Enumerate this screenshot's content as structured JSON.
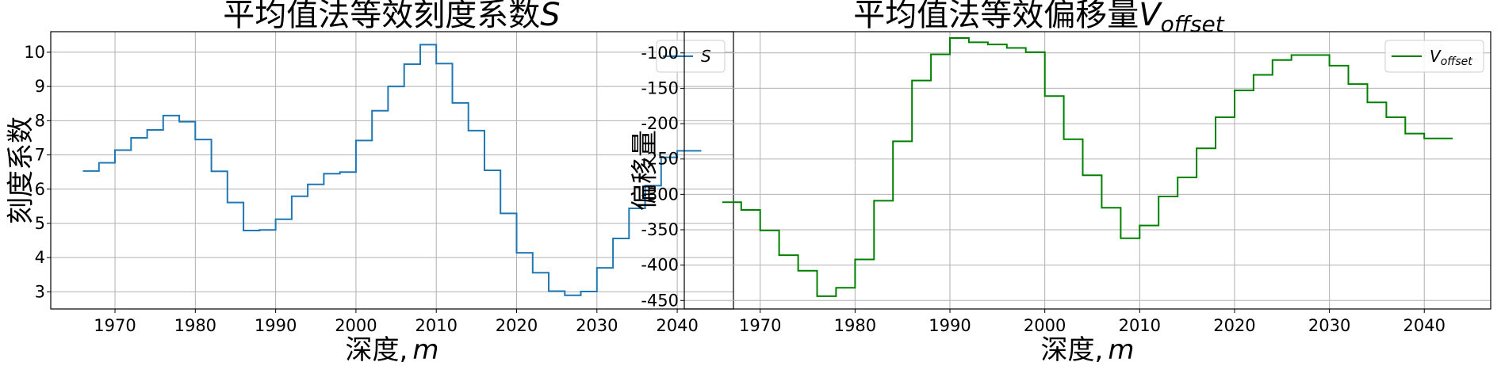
{
  "chart_data": [
    {
      "type": "line",
      "step": "post",
      "title_text": "平均值法等效刻度系数",
      "title_var": "S",
      "xlabel_text": "深度,",
      "xlabel_var": "m",
      "ylabel": "刻度系数",
      "xlim": [
        1962,
        2047
      ],
      "ylim": [
        2.5,
        10.6
      ],
      "xticks": [
        1970,
        1980,
        1990,
        2000,
        2010,
        2020,
        2030,
        2040
      ],
      "yticks": [
        3,
        4,
        5,
        6,
        7,
        8,
        9,
        10
      ],
      "grid": true,
      "legend_position": "top-right",
      "series": [
        {
          "legend_main": "S",
          "legend_sub": "",
          "color": "#1f77b4",
          "x": [
            1966,
            1968,
            1970,
            1972,
            1974,
            1976,
            1978,
            1980,
            1982,
            1984,
            1986,
            1988,
            1990,
            1992,
            1994,
            1996,
            1998,
            2000,
            2002,
            2004,
            2006,
            2008,
            2010,
            2012,
            2014,
            2016,
            2018,
            2020,
            2022,
            2024,
            2026,
            2028,
            2030,
            2032,
            2034,
            2036,
            2038,
            2040,
            2043
          ],
          "y": [
            6.53,
            6.77,
            7.14,
            7.5,
            7.73,
            8.15,
            7.97,
            7.45,
            6.52,
            5.61,
            4.79,
            4.81,
            5.12,
            5.79,
            6.14,
            6.45,
            6.5,
            7.42,
            8.29,
            9.0,
            9.65,
            10.22,
            9.67,
            8.52,
            7.71,
            6.55,
            5.29,
            4.14,
            3.56,
            3.02,
            2.9,
            3.01,
            3.7,
            4.56,
            5.44,
            6.1,
            6.93,
            7.12,
            7.12
          ]
        }
      ]
    },
    {
      "type": "line",
      "step": "post",
      "title_text": "平均值法等效偏移量",
      "title_var": "V",
      "title_sub": "offset",
      "xlabel_text": "深度,",
      "xlabel_var": "m",
      "ylabel": "偏移量",
      "xlim": [
        1962,
        2047
      ],
      "ylim": [
        -462,
        -70
      ],
      "xticks": [
        1970,
        1980,
        1990,
        2000,
        2010,
        2020,
        2030,
        2040
      ],
      "yticks": [
        -100,
        -150,
        -200,
        -250,
        -300,
        -350,
        -400,
        -450
      ],
      "grid": true,
      "legend_position": "top-right",
      "series": [
        {
          "legend_main": "V",
          "legend_sub": "offset",
          "color": "#008000",
          "x": [
            1966,
            1968,
            1970,
            1972,
            1974,
            1976,
            1978,
            1980,
            1982,
            1984,
            1986,
            1988,
            1990,
            1992,
            1994,
            1996,
            1998,
            2000,
            2002,
            2004,
            2006,
            2008,
            2010,
            2012,
            2014,
            2016,
            2018,
            2020,
            2022,
            2024,
            2026,
            2028,
            2030,
            2032,
            2034,
            2036,
            2038,
            2040,
            2043
          ],
          "y": [
            -311,
            -322,
            -351,
            -386,
            -408,
            -444,
            -432,
            -392,
            -309,
            -225,
            -139,
            -102,
            -79,
            -85,
            -88,
            -93,
            -99,
            -161,
            -222,
            -273,
            -319,
            -362,
            -344,
            -303,
            -276,
            -235,
            -191,
            -153,
            -131,
            -110,
            -103,
            -103,
            -118,
            -144,
            -170,
            -191,
            -214,
            -221,
            -221
          ]
        }
      ]
    }
  ]
}
